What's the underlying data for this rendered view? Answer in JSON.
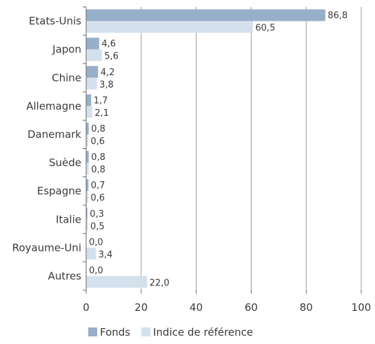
{
  "chart_data": {
    "type": "bar",
    "orientation": "horizontal",
    "categories": [
      "Etats-Unis",
      "Japon",
      "Chine",
      "Allemagne",
      "Danemark",
      "Suède",
      "Espagne",
      "Italie",
      "Royaume-Uni",
      "Autres"
    ],
    "series": [
      {
        "name": "Fonds",
        "color": "#98afc9",
        "values": [
          86.8,
          4.6,
          4.2,
          1.7,
          0.8,
          0.8,
          0.7,
          0.3,
          0.0,
          0.0
        ],
        "labels": [
          "86,8",
          "4,6",
          "4,2",
          "1,7",
          "0,8",
          "0,8",
          "0,7",
          "0,3",
          "0,0",
          "0,0"
        ]
      },
      {
        "name": "Indice de référence",
        "color": "#d5e0ed",
        "values": [
          60.5,
          5.6,
          3.8,
          2.1,
          0.6,
          0.8,
          0.6,
          0.5,
          3.4,
          22.0
        ],
        "labels": [
          "60,5",
          "5,6",
          "3,8",
          "2,1",
          "0,6",
          "0,8",
          "0,6",
          "0,5",
          "3,4",
          "22,0"
        ]
      }
    ],
    "xlim": [
      0,
      100
    ],
    "xticks": [
      0,
      20,
      40,
      60,
      80,
      100
    ],
    "xtick_labels": [
      "0",
      "20",
      "40",
      "60",
      "80",
      "100"
    ],
    "grid": true,
    "legend_position": "bottom-left"
  }
}
